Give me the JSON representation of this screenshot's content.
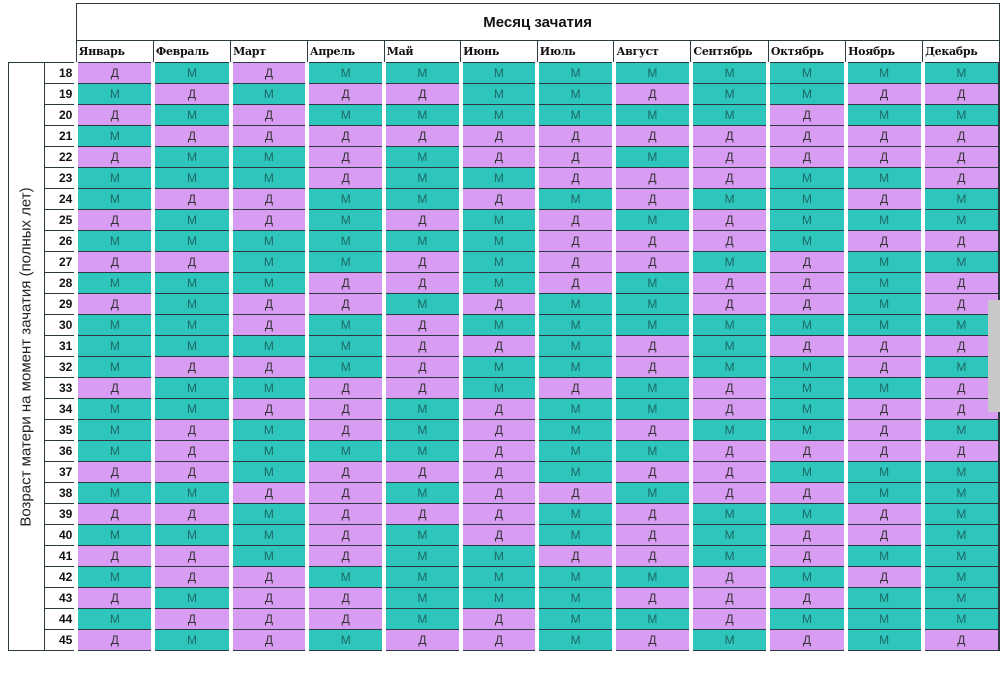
{
  "title": "Месяц зачатия",
  "y_label": "Возраст матери на момент зачатия (полных лет)",
  "months": [
    "Январь",
    "Февраль",
    "Март",
    "Апрель",
    "Май",
    "Июнь",
    "Июль",
    "Август",
    "Сентябрь",
    "Октябрь",
    "Ноябрь",
    "Декабрь"
  ],
  "colors": {
    "girl": "#d89df2",
    "boy": "#2ec5bc",
    "girl_text": "#333333",
    "boy_text": "#1c6a66"
  },
  "legend": {
    "girl": "Д",
    "boy": "М"
  },
  "rows": [
    {
      "age": "18",
      "values": [
        "Д",
        "М",
        "Д",
        "М",
        "М",
        "М",
        "М",
        "М",
        "М",
        "М",
        "М",
        "М"
      ]
    },
    {
      "age": "19",
      "values": [
        "М",
        "Д",
        "М",
        "Д",
        "Д",
        "М",
        "М",
        "Д",
        "М",
        "М",
        "Д",
        "Д"
      ]
    },
    {
      "age": "20",
      "values": [
        "Д",
        "М",
        "Д",
        "М",
        "М",
        "М",
        "М",
        "М",
        "М",
        "Д",
        "М",
        "М"
      ]
    },
    {
      "age": "21",
      "values": [
        "М",
        "Д",
        "Д",
        "Д",
        "Д",
        "Д",
        "Д",
        "Д",
        "Д",
        "Д",
        "Д",
        "Д"
      ]
    },
    {
      "age": "22",
      "values": [
        "Д",
        "М",
        "М",
        "Д",
        "М",
        "Д",
        "Д",
        "М",
        "Д",
        "Д",
        "Д",
        "Д"
      ]
    },
    {
      "age": "23",
      "values": [
        "М",
        "М",
        "М",
        "Д",
        "М",
        "М",
        "Д",
        "Д",
        "Д",
        "М",
        "М",
        "Д"
      ]
    },
    {
      "age": "24",
      "values": [
        "М",
        "Д",
        "Д",
        "М",
        "М",
        "Д",
        "М",
        "Д",
        "М",
        "М",
        "Д",
        "М"
      ]
    },
    {
      "age": "25",
      "values": [
        "Д",
        "М",
        "Д",
        "М",
        "Д",
        "М",
        "Д",
        "М",
        "Д",
        "М",
        "М",
        "М"
      ]
    },
    {
      "age": "26",
      "values": [
        "М",
        "М",
        "М",
        "М",
        "М",
        "М",
        "Д",
        "Д",
        "Д",
        "М",
        "Д",
        "Д"
      ]
    },
    {
      "age": "27",
      "values": [
        "Д",
        "Д",
        "М",
        "М",
        "Д",
        "М",
        "Д",
        "Д",
        "М",
        "Д",
        "М",
        "М"
      ]
    },
    {
      "age": "28",
      "values": [
        "М",
        "М",
        "М",
        "Д",
        "Д",
        "М",
        "Д",
        "М",
        "Д",
        "Д",
        "М",
        "Д"
      ]
    },
    {
      "age": "29",
      "values": [
        "Д",
        "М",
        "Д",
        "Д",
        "М",
        "Д",
        "М",
        "М",
        "Д",
        "Д",
        "М",
        "Д"
      ]
    },
    {
      "age": "30",
      "values": [
        "М",
        "М",
        "Д",
        "М",
        "Д",
        "М",
        "М",
        "М",
        "М",
        "М",
        "М",
        "М"
      ]
    },
    {
      "age": "31",
      "values": [
        "М",
        "М",
        "М",
        "М",
        "Д",
        "Д",
        "М",
        "Д",
        "М",
        "Д",
        "Д",
        "Д"
      ]
    },
    {
      "age": "32",
      "values": [
        "М",
        "Д",
        "Д",
        "М",
        "Д",
        "М",
        "М",
        "Д",
        "М",
        "М",
        "Д",
        "М"
      ]
    },
    {
      "age": "33",
      "values": [
        "Д",
        "М",
        "М",
        "Д",
        "Д",
        "М",
        "Д",
        "М",
        "Д",
        "М",
        "М",
        "Д"
      ]
    },
    {
      "age": "34",
      "values": [
        "М",
        "М",
        "Д",
        "Д",
        "М",
        "Д",
        "М",
        "М",
        "Д",
        "М",
        "Д",
        "Д"
      ]
    },
    {
      "age": "35",
      "values": [
        "М",
        "Д",
        "М",
        "Д",
        "М",
        "Д",
        "М",
        "Д",
        "М",
        "М",
        "Д",
        "М"
      ]
    },
    {
      "age": "36",
      "values": [
        "М",
        "Д",
        "М",
        "М",
        "М",
        "Д",
        "М",
        "М",
        "Д",
        "Д",
        "Д",
        "Д"
      ]
    },
    {
      "age": "37",
      "values": [
        "Д",
        "Д",
        "М",
        "Д",
        "Д",
        "Д",
        "М",
        "Д",
        "Д",
        "М",
        "М",
        "М"
      ]
    },
    {
      "age": "38",
      "values": [
        "М",
        "М",
        "Д",
        "Д",
        "М",
        "Д",
        "Д",
        "М",
        "Д",
        "Д",
        "М",
        "М"
      ]
    },
    {
      "age": "39",
      "values": [
        "Д",
        "Д",
        "М",
        "Д",
        "Д",
        "Д",
        "М",
        "Д",
        "М",
        "М",
        "Д",
        "М"
      ]
    },
    {
      "age": "40",
      "values": [
        "М",
        "М",
        "М",
        "Д",
        "М",
        "Д",
        "М",
        "Д",
        "М",
        "Д",
        "Д",
        "М"
      ]
    },
    {
      "age": "41",
      "values": [
        "Д",
        "Д",
        "М",
        "Д",
        "М",
        "М",
        "Д",
        "Д",
        "М",
        "Д",
        "М",
        "М"
      ]
    },
    {
      "age": "42",
      "values": [
        "М",
        "Д",
        "Д",
        "М",
        "М",
        "М",
        "М",
        "М",
        "Д",
        "М",
        "Д",
        "М"
      ]
    },
    {
      "age": "43",
      "values": [
        "Д",
        "М",
        "Д",
        "Д",
        "М",
        "М",
        "М",
        "Д",
        "Д",
        "Д",
        "М",
        "М"
      ]
    },
    {
      "age": "44",
      "values": [
        "М",
        "Д",
        "Д",
        "Д",
        "М",
        "Д",
        "М",
        "М",
        "Д",
        "М",
        "М",
        "М"
      ]
    },
    {
      "age": "45",
      "values": [
        "Д",
        "М",
        "Д",
        "М",
        "Д",
        "Д",
        "М",
        "Д",
        "М",
        "Д",
        "М",
        "Д"
      ]
    }
  ]
}
